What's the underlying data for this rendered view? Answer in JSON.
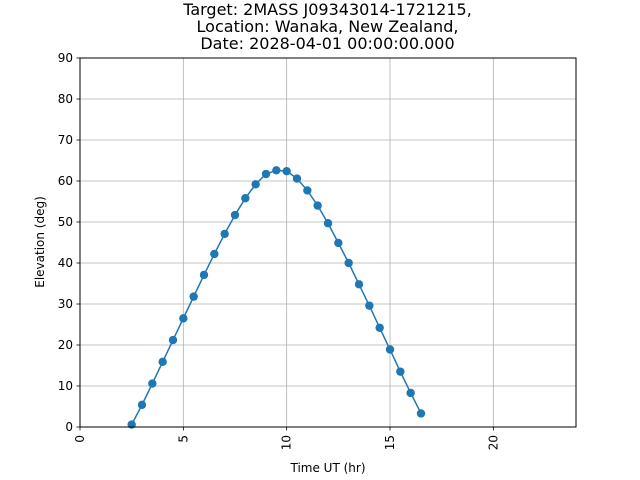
{
  "chart_data": {
    "type": "line",
    "title_lines": [
      "Target: 2MASS J09343014-1721215,",
      "Location: Wanaka, New Zealand,",
      "Date: 2028-04-01 00:00:00.000"
    ],
    "xlabel": "Time UT (hr)",
    "ylabel": "Elevation (deg)",
    "xlim": [
      0,
      24
    ],
    "ylim": [
      0,
      90
    ],
    "xticks": [
      0,
      5,
      10,
      15,
      20
    ],
    "yticks": [
      0,
      10,
      20,
      30,
      40,
      50,
      60,
      70,
      80,
      90
    ],
    "grid": true,
    "line_color": "#1f77b4",
    "series": [
      {
        "x": [
          2.5,
          3.0,
          3.5,
          4.0,
          4.5,
          5.0,
          5.5,
          6.0,
          6.5,
          7.0,
          7.5,
          8.0,
          8.5,
          9.0,
          9.5,
          10.0,
          10.5,
          11.0,
          11.5,
          12.0,
          12.5,
          13.0,
          13.5,
          14.0,
          14.5,
          15.0,
          15.5,
          16.0,
          16.5
        ],
        "y": [
          0.6,
          5.4,
          10.6,
          15.9,
          21.2,
          26.5,
          31.8,
          37.1,
          42.2,
          47.1,
          51.7,
          55.8,
          59.2,
          61.7,
          62.6,
          62.4,
          60.6,
          57.7,
          54.0,
          49.7,
          44.9,
          40.0,
          34.8,
          29.6,
          24.2,
          18.9,
          13.5,
          8.3,
          3.3
        ]
      }
    ]
  }
}
